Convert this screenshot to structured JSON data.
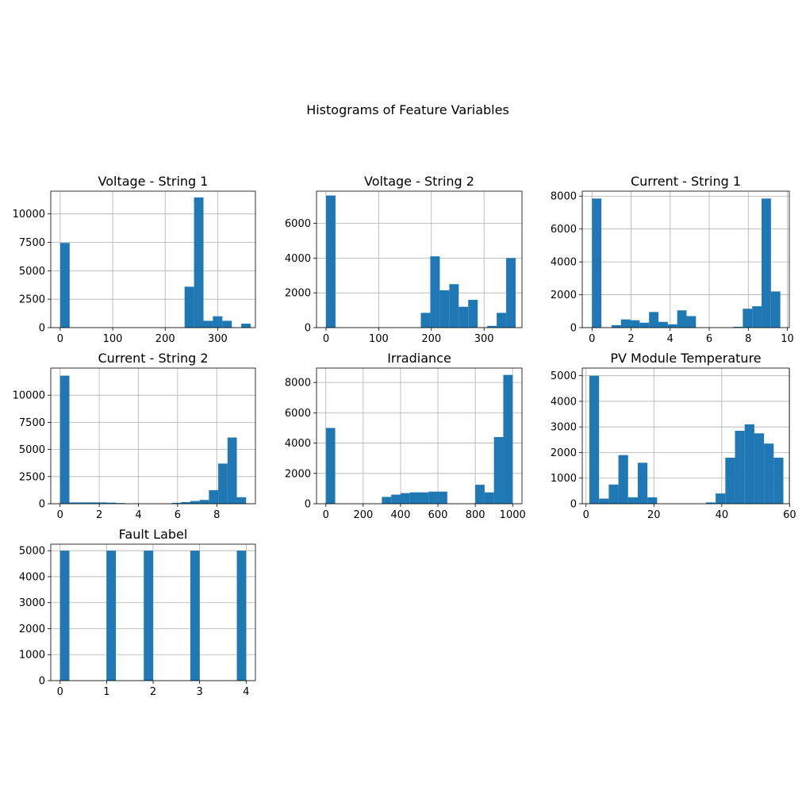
{
  "figure": {
    "title": "Histograms of Feature Variables"
  },
  "colors": {
    "bar": "#1f77b4",
    "grid": "#b0b0b0",
    "axis": "#000000"
  },
  "chart_data": [
    {
      "type": "bar",
      "title": "Voltage - String 1",
      "xlabel": "",
      "ylabel": "",
      "xlim": [
        -18,
        372
      ],
      "ylim": [
        0,
        12000
      ],
      "grid": true,
      "xticks": [
        0,
        100,
        200,
        300
      ],
      "yticks": [
        0,
        2500,
        5000,
        7500,
        10000
      ],
      "bins": [
        [
          0,
          18,
          7450
        ],
        [
          237,
          255,
          3600
        ],
        [
          255,
          273,
          11450
        ],
        [
          273,
          291,
          600
        ],
        [
          291,
          309,
          1000
        ],
        [
          309,
          327,
          600
        ],
        [
          345,
          363,
          350
        ]
      ]
    },
    {
      "type": "bar",
      "title": "Voltage - String 2",
      "xlabel": "",
      "ylabel": "",
      "xlim": [
        -18,
        372
      ],
      "ylim": [
        0,
        7850
      ],
      "grid": true,
      "xticks": [
        0,
        100,
        200,
        300
      ],
      "yticks": [
        0,
        2000,
        4000,
        6000
      ],
      "bins": [
        [
          0,
          18,
          7600
        ],
        [
          180,
          198,
          850
        ],
        [
          198,
          216,
          4100
        ],
        [
          216,
          234,
          2150
        ],
        [
          234,
          252,
          2500
        ],
        [
          252,
          270,
          1200
        ],
        [
          270,
          288,
          1600
        ],
        [
          306,
          324,
          100
        ],
        [
          324,
          342,
          850
        ],
        [
          342,
          360,
          4000
        ]
      ]
    },
    {
      "type": "bar",
      "title": "Current - String 1",
      "xlabel": "",
      "ylabel": "",
      "xlim": [
        -0.5,
        10.1
      ],
      "ylim": [
        0,
        8300
      ],
      "grid": true,
      "xticks": [
        0,
        2,
        4,
        6,
        8,
        10
      ],
      "yticks": [
        0,
        2000,
        4000,
        6000,
        8000
      ],
      "bins": [
        [
          0,
          0.48,
          7850
        ],
        [
          1.0,
          1.48,
          150
        ],
        [
          1.48,
          1.96,
          500
        ],
        [
          1.96,
          2.44,
          450
        ],
        [
          2.44,
          2.92,
          300
        ],
        [
          2.92,
          3.4,
          950
        ],
        [
          3.4,
          3.88,
          350
        ],
        [
          3.88,
          4.36,
          200
        ],
        [
          4.36,
          4.84,
          1050
        ],
        [
          4.84,
          5.32,
          700
        ],
        [
          7.24,
          7.72,
          50
        ],
        [
          7.72,
          8.2,
          1150
        ],
        [
          8.2,
          8.68,
          1300
        ],
        [
          8.68,
          9.16,
          7850
        ],
        [
          9.16,
          9.64,
          2200
        ]
      ]
    },
    {
      "type": "bar",
      "title": "Current - String 2",
      "xlabel": "",
      "ylabel": "",
      "xlim": [
        -0.475,
        9.975
      ],
      "ylim": [
        0,
        12500
      ],
      "grid": true,
      "xticks": [
        0,
        2,
        4,
        6,
        8
      ],
      "yticks": [
        0,
        2500,
        5000,
        7500,
        10000
      ],
      "bins": [
        [
          0,
          0.475,
          11800
        ],
        [
          0.475,
          0.95,
          120
        ],
        [
          0.95,
          1.425,
          120
        ],
        [
          1.425,
          1.9,
          120
        ],
        [
          1.9,
          2.375,
          120
        ],
        [
          2.375,
          2.85,
          100
        ],
        [
          2.85,
          3.325,
          60
        ],
        [
          5.7,
          6.175,
          80
        ],
        [
          6.175,
          6.65,
          150
        ],
        [
          6.65,
          7.125,
          250
        ],
        [
          7.125,
          7.6,
          350
        ],
        [
          7.6,
          8.075,
          1250
        ],
        [
          8.075,
          8.55,
          3700
        ],
        [
          8.55,
          9.025,
          6100
        ],
        [
          9.025,
          9.5,
          600
        ]
      ]
    },
    {
      "type": "bar",
      "title": "Irradiance",
      "xlabel": "",
      "ylabel": "",
      "xlim": [
        -50,
        1050
      ],
      "ylim": [
        0,
        8950
      ],
      "grid": true,
      "xticks": [
        0,
        200,
        400,
        600,
        800,
        1000
      ],
      "yticks": [
        0,
        2000,
        4000,
        6000,
        8000
      ],
      "bins": [
        [
          0,
          50,
          5000
        ],
        [
          300,
          350,
          450
        ],
        [
          350,
          400,
          600
        ],
        [
          400,
          450,
          700
        ],
        [
          450,
          500,
          750
        ],
        [
          500,
          550,
          750
        ],
        [
          550,
          600,
          800
        ],
        [
          600,
          650,
          800
        ],
        [
          800,
          850,
          1250
        ],
        [
          850,
          900,
          750
        ],
        [
          900,
          950,
          4400
        ],
        [
          950,
          1000,
          8500
        ]
      ]
    },
    {
      "type": "bar",
      "title": "PV Module Temperature",
      "xlabel": "",
      "ylabel": "",
      "xlim": [
        -1.1,
        59.9
      ],
      "ylim": [
        0,
        5300
      ],
      "grid": true,
      "xticks": [
        0,
        20,
        40,
        60
      ],
      "yticks": [
        0,
        1000,
        2000,
        3000,
        4000,
        5000
      ],
      "bins": [
        [
          1,
          3.85,
          5000
        ],
        [
          3.85,
          6.7,
          200
        ],
        [
          6.7,
          9.55,
          750
        ],
        [
          9.55,
          12.4,
          1900
        ],
        [
          12.4,
          15.25,
          250
        ],
        [
          15.25,
          18.1,
          1600
        ],
        [
          18.1,
          20.95,
          250
        ],
        [
          35.35,
          38.2,
          50
        ],
        [
          38.2,
          41.05,
          400
        ],
        [
          41.05,
          43.9,
          1800
        ],
        [
          43.9,
          46.75,
          2850
        ],
        [
          46.75,
          49.6,
          3100
        ],
        [
          49.6,
          52.45,
          2750
        ],
        [
          52.45,
          55.3,
          2350
        ],
        [
          55.3,
          58.15,
          1800
        ]
      ]
    },
    {
      "type": "bar",
      "title": "Fault Label",
      "xlabel": "",
      "ylabel": "",
      "xlim": [
        -0.2,
        4.2
      ],
      "ylim": [
        0,
        5250
      ],
      "grid": true,
      "xticks": [
        0,
        1,
        2,
        3,
        4
      ],
      "yticks": [
        0,
        1000,
        2000,
        3000,
        4000,
        5000
      ],
      "bins": [
        [
          0,
          0.2,
          5000
        ],
        [
          1.0,
          1.2,
          5000
        ],
        [
          1.8,
          2.0,
          5000
        ],
        [
          2.8,
          3.0,
          5000
        ],
        [
          3.8,
          4.0,
          5000
        ]
      ]
    }
  ]
}
